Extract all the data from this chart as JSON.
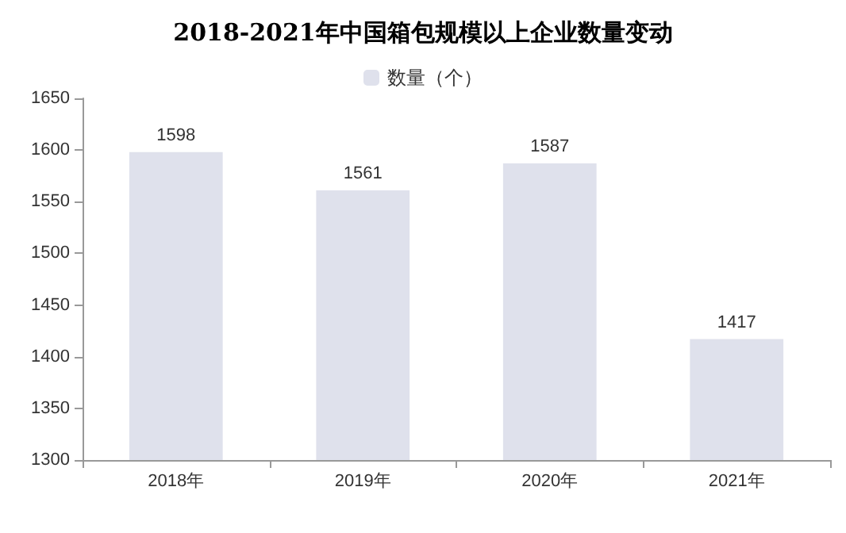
{
  "chart_data": {
    "type": "bar",
    "title": "2018-2021年中国箱包规模以上企业数量变动",
    "categories": [
      "2018年",
      "2019年",
      "2020年",
      "2021年"
    ],
    "series": [
      {
        "name": "数量（个）",
        "color": "#dfe1ec",
        "values": [
          1598,
          1561,
          1587,
          1417
        ]
      }
    ],
    "ylim": [
      1300,
      1650
    ],
    "yticks": [
      1300,
      1350,
      1400,
      1450,
      1500,
      1550,
      1600,
      1650
    ],
    "data_labels": true,
    "legend": "top",
    "grid": false
  }
}
